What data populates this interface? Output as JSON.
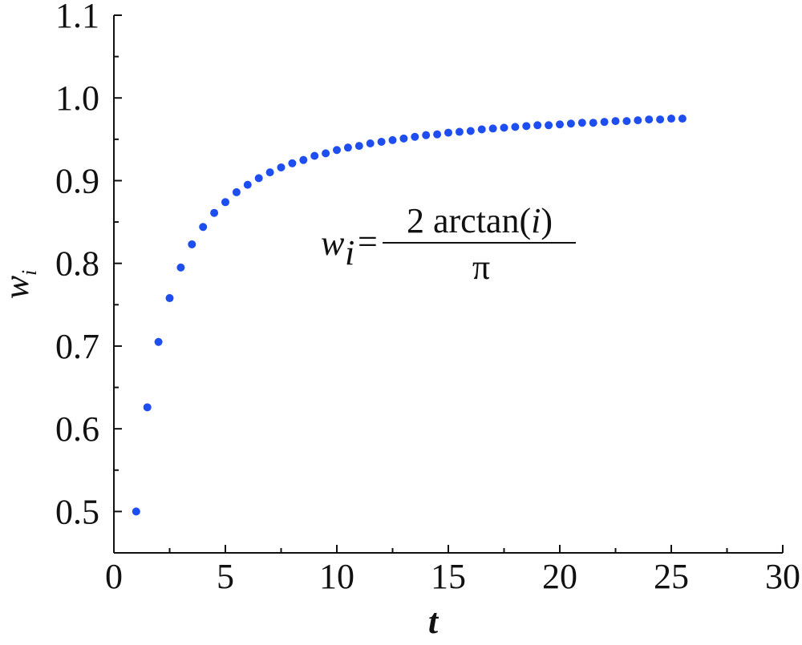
{
  "chart_data": {
    "type": "scatter",
    "xlabel": "t",
    "ylabel": "w",
    "ylabel_sub": "i",
    "annotation": {
      "lhs": "w",
      "lhs_sub": "i",
      "equals": "=",
      "num_pre": "2 arctan(",
      "num_var": "i",
      "num_post": ")",
      "denominator": "π"
    },
    "color": "#1f4ef0",
    "xlim": [
      0,
      30
    ],
    "ylim": [
      0.45,
      1.1
    ],
    "xticks": [
      0,
      5,
      10,
      15,
      20,
      25,
      30
    ],
    "xminorticks": [
      2.5,
      7.5,
      12.5,
      17.5,
      22.5,
      27.5
    ],
    "yticks": [
      0.5,
      0.6,
      0.7,
      0.8,
      0.9,
      {
        "value": 1,
        "label": "1.0"
      },
      1.1
    ],
    "yminorticks": [
      0.55,
      0.65,
      0.75,
      0.85,
      0.95,
      1.05
    ],
    "x": [
      1,
      1.5,
      2,
      2.5,
      3,
      3.5,
      4,
      4.5,
      5,
      5.5,
      6,
      6.5,
      7,
      7.5,
      8,
      8.5,
      9,
      9.5,
      10,
      10.5,
      11,
      11.5,
      12,
      12.5,
      13,
      13.5,
      14,
      14.5,
      15,
      15.5,
      16,
      16.5,
      17,
      17.5,
      18,
      18.5,
      19,
      19.5,
      20,
      20.5,
      21,
      21.5,
      22,
      22.5,
      23,
      23.5,
      24,
      24.5,
      25,
      25.5
    ],
    "values": [
      0.5,
      0.626,
      0.705,
      0.758,
      0.795,
      0.823,
      0.844,
      0.861,
      0.874,
      0.886,
      0.895,
      0.903,
      0.91,
      0.916,
      0.921,
      0.925,
      0.93,
      0.933,
      0.937,
      0.94,
      0.942,
      0.945,
      0.947,
      0.949,
      0.951,
      0.953,
      0.955,
      0.956,
      0.958,
      0.959,
      0.96,
      0.962,
      0.963,
      0.964,
      0.965,
      0.966,
      0.967,
      0.967,
      0.968,
      0.969,
      0.97,
      0.97,
      0.971,
      0.972,
      0.972,
      0.973,
      0.974,
      0.974,
      0.975,
      0.975
    ]
  }
}
